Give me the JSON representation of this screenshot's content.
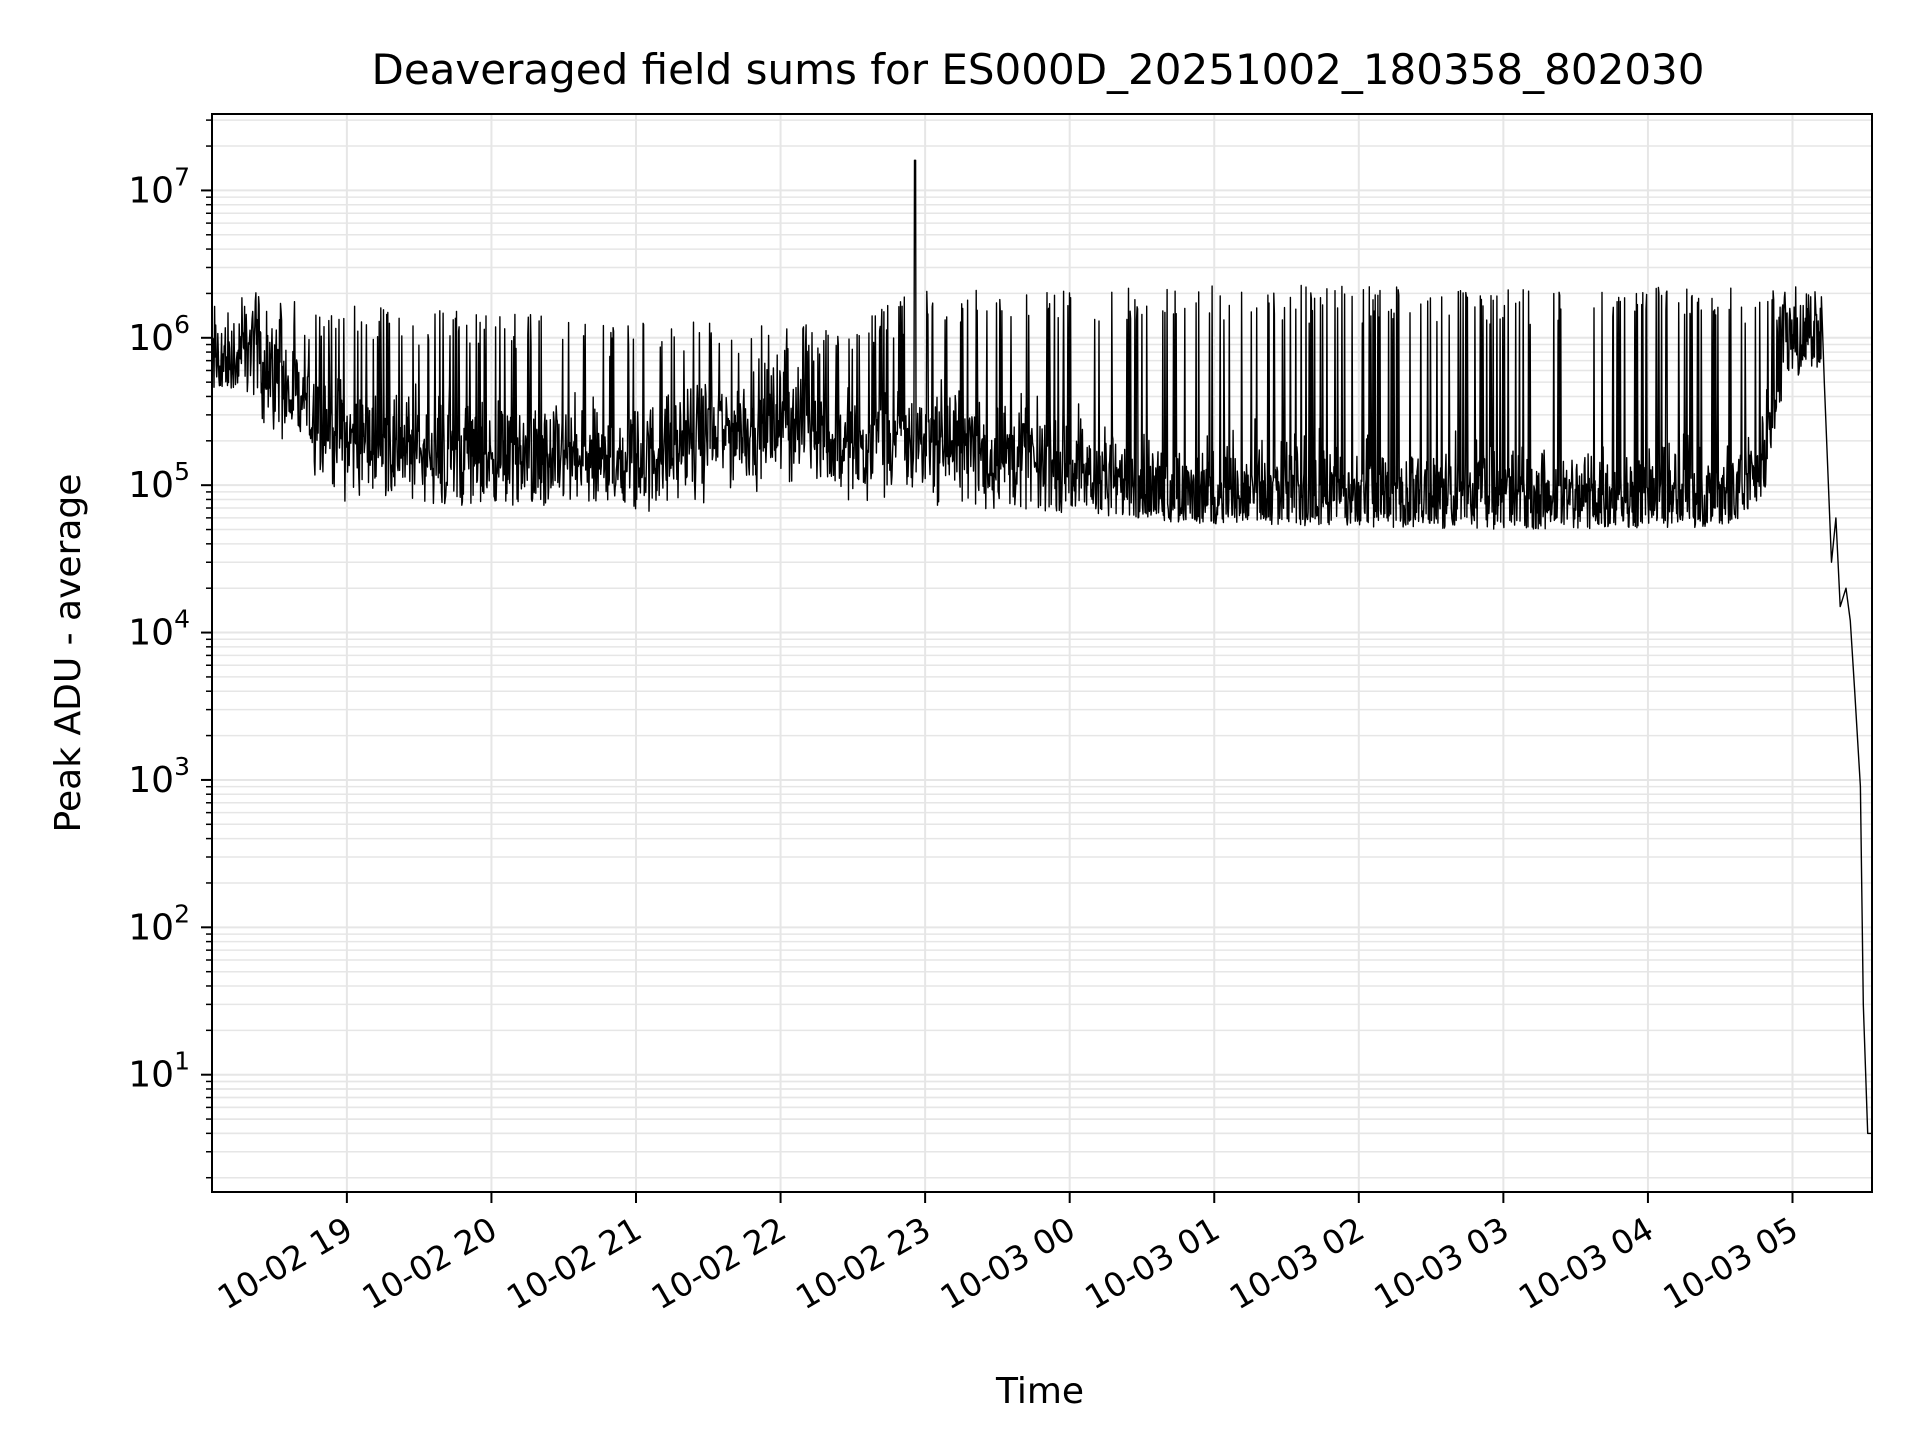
{
  "chart_data": {
    "type": "line",
    "title": "Deaveraged field sums for ES000D_20251002_180358_802030",
    "xlabel": "Time",
    "ylabel": "Peak ADU - average",
    "yscale": "log",
    "ylim": [
      1.6,
      33000000
    ],
    "xlim_hours": [
      18.067,
      29.55
    ],
    "grid": true,
    "line_color": "#000000",
    "grid_color": "#e6e6e6",
    "y_ticks": [
      {
        "base": "10",
        "exp": "1",
        "value": 10
      },
      {
        "base": "10",
        "exp": "2",
        "value": 100
      },
      {
        "base": "10",
        "exp": "3",
        "value": 1000
      },
      {
        "base": "10",
        "exp": "4",
        "value": 10000
      },
      {
        "base": "10",
        "exp": "5",
        "value": 100000
      },
      {
        "base": "10",
        "exp": "6",
        "value": 1000000
      },
      {
        "base": "10",
        "exp": "7",
        "value": 10000000
      }
    ],
    "x_ticks": [
      {
        "label": "10-02 19",
        "hour": 19
      },
      {
        "label": "10-02 20",
        "hour": 20
      },
      {
        "label": "10-02 21",
        "hour": 21
      },
      {
        "label": "10-02 22",
        "hour": 22
      },
      {
        "label": "10-02 23",
        "hour": 23
      },
      {
        "label": "10-03 00",
        "hour": 24
      },
      {
        "label": "10-03 01",
        "hour": 25
      },
      {
        "label": "10-03 02",
        "hour": 26
      },
      {
        "label": "10-03 03",
        "hour": 27
      },
      {
        "label": "10-03 04",
        "hour": 28
      },
      {
        "label": "10-03 05",
        "hour": 29
      }
    ],
    "series": [
      {
        "name": "deaveraged field sum",
        "profile": [
          {
            "hour": 18.07,
            "base": 700000,
            "spike": 900000,
            "min": 450000
          },
          {
            "hour": 18.3,
            "base": 700000,
            "spike": 1000000,
            "min": 450000
          },
          {
            "hour": 18.35,
            "base": 900000,
            "spike": 2000000,
            "min": 300000
          },
          {
            "hour": 18.6,
            "base": 400000,
            "spike": 1800000,
            "min": 80000
          },
          {
            "hour": 19.0,
            "base": 200000,
            "spike": 1700000,
            "min": 75000
          },
          {
            "hour": 20.0,
            "base": 150000,
            "spike": 1500000,
            "min": 70000
          },
          {
            "hour": 21.0,
            "base": 140000,
            "spike": 1300000,
            "min": 65000
          },
          {
            "hour": 21.4,
            "base": 200000,
            "spike": 1400000,
            "min": 70000
          },
          {
            "hour": 22.0,
            "base": 280000,
            "spike": 1200000,
            "min": 80000
          },
          {
            "hour": 22.5,
            "base": 180000,
            "spike": 1300000,
            "min": 70000
          },
          {
            "hour": 23.0,
            "base": 200000,
            "spike": 2200000,
            "min": 70000
          },
          {
            "hour": 24.0,
            "base": 130000,
            "spike": 2100000,
            "min": 65000
          },
          {
            "hour": 24.8,
            "base": 85000,
            "spike": 2300000,
            "min": 55000
          },
          {
            "hour": 27.0,
            "base": 85000,
            "spike": 2200000,
            "min": 50000
          },
          {
            "hour": 28.6,
            "base": 80000,
            "spike": 2200000,
            "min": 52000
          },
          {
            "hour": 28.8,
            "base": 150000,
            "spike": 2200000,
            "min": 80000
          },
          {
            "hour": 28.95,
            "base": 1000000,
            "spike": 2300000,
            "min": 500000
          },
          {
            "hour": 29.2,
            "base": 1000000,
            "spike": 2200000,
            "min": 600000
          }
        ],
        "dropoff": [
          {
            "hour": 29.22,
            "value": 500000
          },
          {
            "hour": 29.27,
            "value": 30000
          },
          {
            "hour": 29.3,
            "value": 60000
          },
          {
            "hour": 29.33,
            "value": 15000
          },
          {
            "hour": 29.37,
            "value": 20000
          },
          {
            "hour": 29.4,
            "value": 12000
          },
          {
            "hour": 29.43,
            "value": 4000
          },
          {
            "hour": 29.47,
            "value": 900
          },
          {
            "hour": 29.49,
            "value": 30
          },
          {
            "hour": 29.52,
            "value": 4
          },
          {
            "hour": 29.55,
            "value": 4
          }
        ],
        "notable_spike": {
          "hour": 22.93,
          "value": 16000000
        }
      }
    ]
  }
}
